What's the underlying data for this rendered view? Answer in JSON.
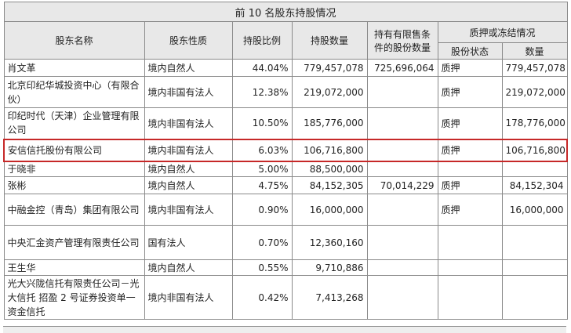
{
  "table": {
    "title": "前 10 名股东持股情况",
    "headers": {
      "name": "股东名称",
      "nature": "股东性质",
      "ratio": "持股比例",
      "shares": "持股数量",
      "restricted": "持有有限售条件的股份数量",
      "pledge_group": "质押或冻结情况",
      "pledge_status": "股份状态",
      "pledge_qty": "数量"
    },
    "rows": [
      {
        "name": "肖文革",
        "nature": "境内自然人",
        "ratio": "44.04%",
        "shares": "779,457,078",
        "restricted": "725,696,064",
        "status": "质押",
        "qty": "779,457,078"
      },
      {
        "name": "北京印纪华城投资中心（有限合伙）",
        "nature": "境内非国有法人",
        "ratio": "12.38%",
        "shares": "219,072,000",
        "restricted": "",
        "status": "质押",
        "qty": "219,072,000"
      },
      {
        "name": "印纪时代（天津）企业管理有限公司",
        "nature": "境内非国有法人",
        "ratio": "10.50%",
        "shares": "185,776,000",
        "restricted": "",
        "status": "质押",
        "qty": "178,776,000"
      },
      {
        "name": "安信信托股份有限公司",
        "nature": "境内非国有法人",
        "ratio": "6.03%",
        "shares": "106,716,800",
        "restricted": "",
        "status": "质押",
        "qty": "106,716,800"
      },
      {
        "name": "于晓非",
        "nature": "境内自然人",
        "ratio": "5.00%",
        "shares": "88,500,000",
        "restricted": "",
        "status": "",
        "qty": ""
      },
      {
        "name": "张彬",
        "nature": "境内自然人",
        "ratio": "4.75%",
        "shares": "84,152,305",
        "restricted": "70,014,229",
        "status": "质押",
        "qty": "84,152,304"
      },
      {
        "name": "中融金控（青岛）集团有限公司",
        "nature": "境内非国有法人",
        "ratio": "0.90%",
        "shares": "16,000,000",
        "restricted": "",
        "status": "质押",
        "qty": "16,000,000"
      },
      {
        "name": "中央汇金资产管理有限责任公司",
        "nature": "国有法人",
        "ratio": "0.70%",
        "shares": "12,360,160",
        "restricted": "",
        "status": "",
        "qty": ""
      },
      {
        "name": "王生华",
        "nature": "境内自然人",
        "ratio": "0.55%",
        "shares": "9,710,886",
        "restricted": "",
        "status": "",
        "qty": ""
      },
      {
        "name": "光大兴陇信托有限责任公司－光大信托 招盈 2 号证券投资单一资金信托",
        "nature": "境内非国有法人",
        "ratio": "0.42%",
        "shares": "7,413,268",
        "restricted": "",
        "status": "",
        "qty": ""
      }
    ]
  },
  "highlight_color": "#c62828"
}
